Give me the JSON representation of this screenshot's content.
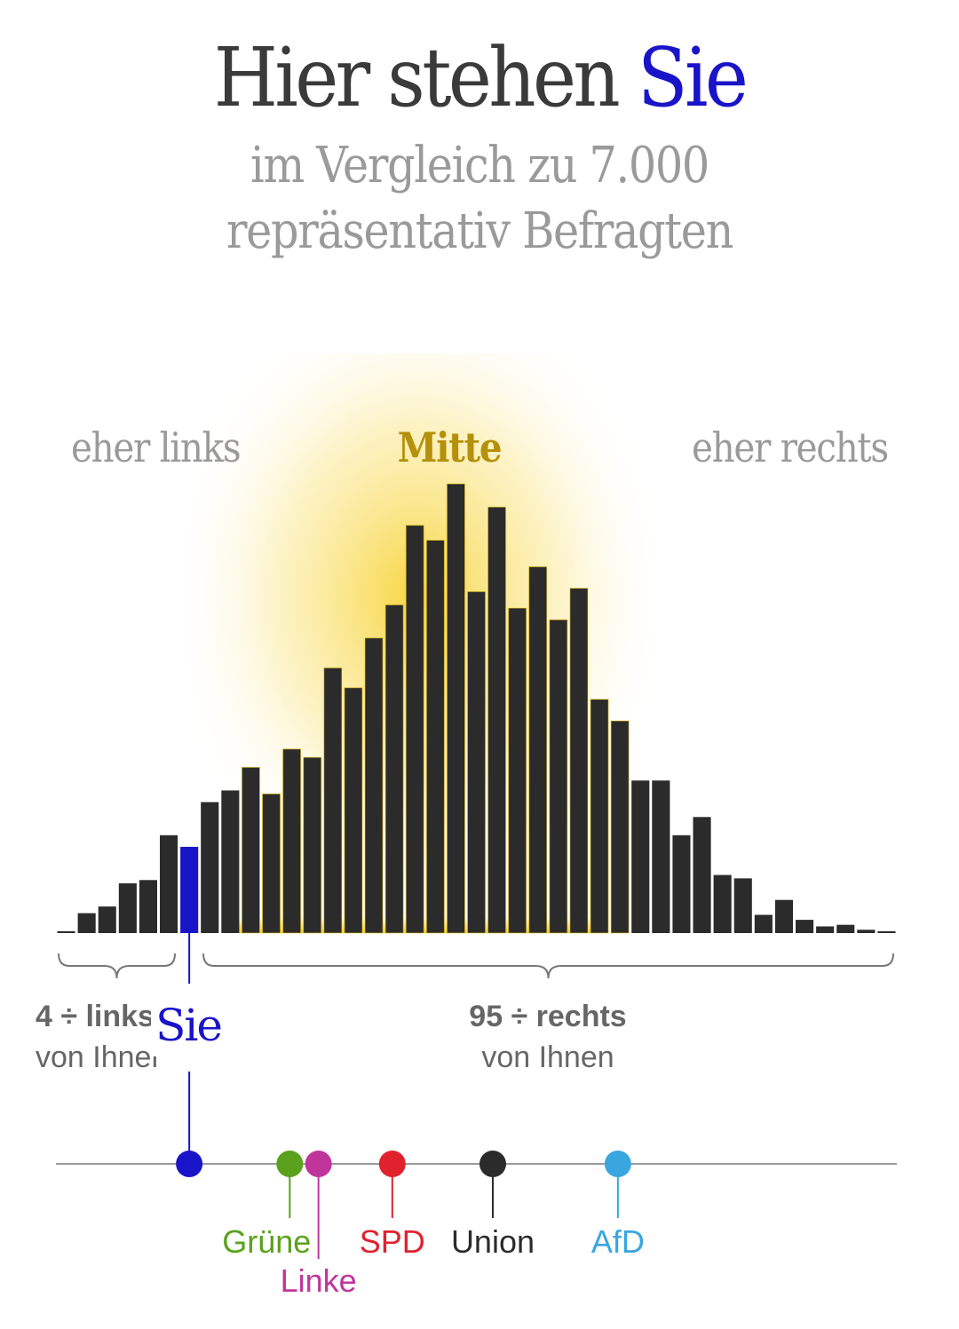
{
  "header": {
    "title_part1": "Hier stehen ",
    "title_you": "Sie",
    "subtitle_line1": "im Vergleich zu 7.000",
    "subtitle_line2": "repräsentativ Befragten"
  },
  "zones": {
    "left": "eher links",
    "middle": "Mitte",
    "right": "eher rechts"
  },
  "stats": {
    "left_pct": "4 ÷ links",
    "left_text": "von Ihnen",
    "right_pct": "95 ÷ rechts",
    "right_text": "von Ihnen"
  },
  "you_label": "Sie",
  "colors": {
    "bar": "#2b2b2b",
    "you": "#1a14c8",
    "middle_glow": "#f5c800",
    "axis": "#9a9a9a"
  },
  "chart_data": {
    "type": "bar",
    "description_free": true,
    "bin_count": 41,
    "values": [
      1,
      12,
      16,
      30,
      32,
      59,
      52,
      79,
      86,
      100,
      84,
      111,
      106,
      160,
      148,
      178,
      198,
      246,
      237,
      271,
      206,
      257,
      196,
      221,
      189,
      208,
      141,
      128,
      92,
      92,
      59,
      70,
      35,
      33,
      11,
      20,
      8,
      4,
      5,
      2,
      1
    ],
    "highlight_index": 6,
    "middle_range": [
      9,
      27
    ],
    "ylim": [
      0,
      280
    ]
  },
  "party_scale": {
    "you_position": 6,
    "parties": [
      {
        "name": "Grüne",
        "position": 10.9,
        "color": "#5aa21d",
        "label_row": 1
      },
      {
        "name": "Linke",
        "position": 12.3,
        "color": "#c0359b",
        "label_row": 2
      },
      {
        "name": "SPD",
        "position": 15.9,
        "color": "#e0222f",
        "label_row": 1
      },
      {
        "name": "Union",
        "position": 20.8,
        "color": "#2b2b2b",
        "label_row": 1
      },
      {
        "name": "AfD",
        "position": 26.9,
        "color": "#39a6e0",
        "label_row": 1
      }
    ]
  }
}
